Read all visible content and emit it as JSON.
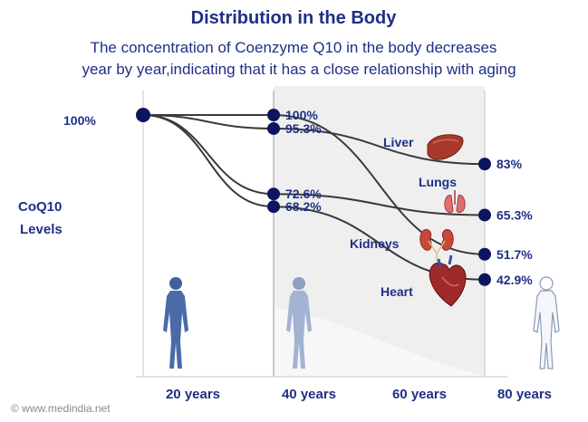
{
  "title": "Distribution in the Body",
  "subtitle_line1": "The concentration of  Coenzyme Q10 in the body decreases",
  "subtitle_line2": "year by year,indicating that it has a close relationship with aging",
  "credit": "© www.medindia.net",
  "colors": {
    "text": "#1f2f86",
    "line": "#3a3a3a",
    "marker": "#0d1560",
    "shade": "#efefef",
    "figure": "#4a6aa8"
  },
  "chart_data": {
    "type": "line",
    "title": "Distribution in the Body",
    "ylabel": "CoQ10 Levels",
    "xlabel": "",
    "categories": [
      "20 years",
      "40 years",
      "60 years",
      "80 years"
    ],
    "start": {
      "label": "100%",
      "value": 100,
      "x": "20 years"
    },
    "ylim": [
      40,
      100
    ],
    "series": [
      {
        "name": "Heart",
        "icon": "heart-icon",
        "points": [
          {
            "x": "20 years",
            "y": 100
          },
          {
            "x": "40 years",
            "y": 68.2,
            "label": "68.2%"
          },
          {
            "x": "80 years",
            "y": 42.9,
            "label": "42.9%"
          }
        ]
      },
      {
        "name": "Lungs",
        "icon": "lungs-icon",
        "points": [
          {
            "x": "20 years",
            "y": 100
          },
          {
            "x": "40 years",
            "y": 72.6,
            "label": "72.6%"
          },
          {
            "x": "80 years",
            "y": 65.3,
            "label": "65.3%"
          }
        ]
      },
      {
        "name": "Liver",
        "icon": "liver-icon",
        "points": [
          {
            "x": "20 years",
            "y": 100
          },
          {
            "x": "40 years",
            "y": 95.3,
            "label": "95.3%"
          },
          {
            "x": "80 years",
            "y": 83,
            "label": "83%"
          }
        ]
      },
      {
        "name": "Kidneys",
        "icon": "kidneys-icon",
        "points": [
          {
            "x": "20 years",
            "y": 100
          },
          {
            "x": "40 years",
            "y": 100,
            "label": "100%"
          },
          {
            "x": "80 years",
            "y": 51.7,
            "label": "51.7%"
          }
        ]
      }
    ]
  }
}
